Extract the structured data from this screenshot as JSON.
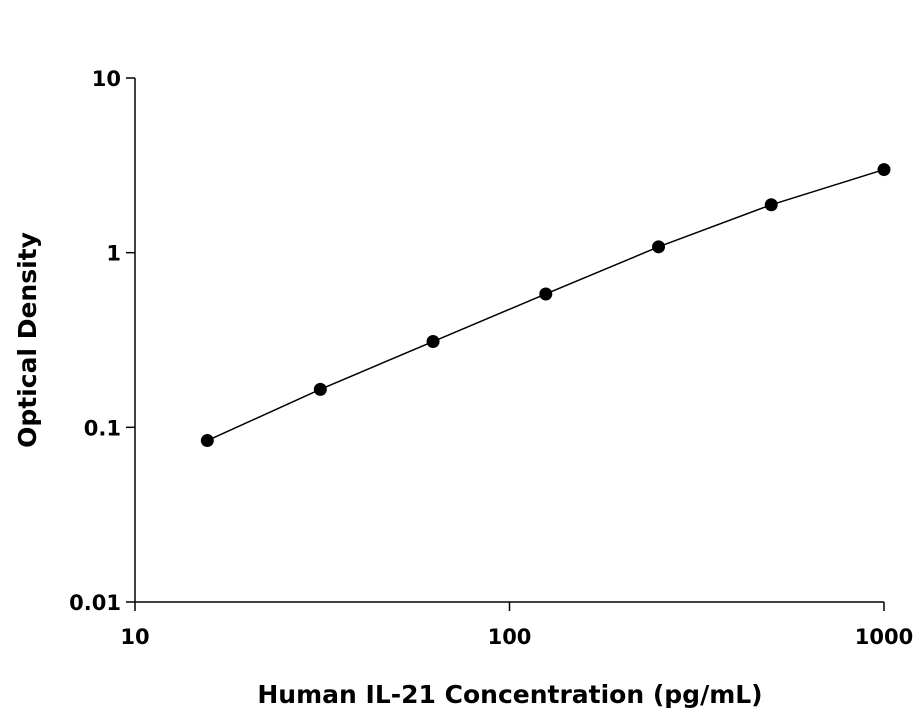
{
  "chart_data": {
    "type": "scatter",
    "x_label": "Human IL-21 Concentration (pg/mL)",
    "y_label": "Optical Density",
    "x": [
      15.6,
      31.25,
      62.5,
      125,
      250,
      500,
      1000
    ],
    "values": [
      0.084,
      0.165,
      0.31,
      0.58,
      1.08,
      1.88,
      2.99
    ],
    "color": "#000000",
    "connect_line": true,
    "x_log": true,
    "y_log": true,
    "xlim": [
      10,
      1000
    ],
    "xticks": [
      10,
      100,
      1000
    ],
    "ylim": [
      0.01,
      10
    ],
    "yticks": [
      0.01,
      0.1,
      1,
      10
    ]
  }
}
